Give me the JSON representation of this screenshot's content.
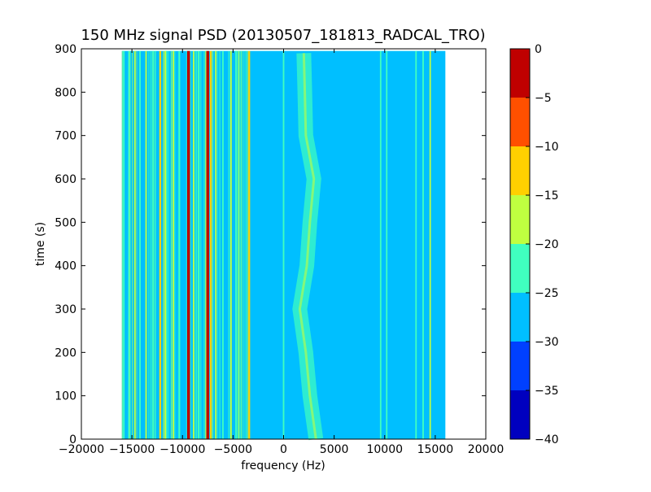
{
  "chart_data": {
    "type": "heatmap",
    "title": "150 MHz signal PSD (20130507_181813_RADCAL_TRO)",
    "xlabel": "frequency (Hz)",
    "ylabel": "time (s)",
    "xlim": [
      -20000,
      20000
    ],
    "ylim": [
      0,
      900
    ],
    "data_extent": {
      "x": [
        -16000,
        16000
      ],
      "y": [
        0,
        895
      ]
    },
    "xticks": [
      -20000,
      -15000,
      -10000,
      -5000,
      0,
      5000,
      10000,
      15000,
      20000
    ],
    "xtick_labels": [
      "−20000",
      "−15000",
      "−10000",
      "−5000",
      "0",
      "5000",
      "10000",
      "15000",
      "20000"
    ],
    "yticks": [
      0,
      100,
      200,
      300,
      400,
      500,
      600,
      700,
      800,
      900
    ],
    "ytick_labels": [
      "0",
      "100",
      "200",
      "300",
      "400",
      "500",
      "600",
      "700",
      "800",
      "900"
    ],
    "colorbar": {
      "ticks": [
        0,
        -5,
        -10,
        -15,
        -20,
        -25,
        -30,
        -35,
        -40
      ],
      "tick_labels": [
        "0",
        "−5",
        "−10",
        "−15",
        "−20",
        "−25",
        "−30",
        "−35",
        "−40"
      ],
      "levels": [
        {
          "range": [
            -40,
            -35
          ],
          "color": "#0000bf"
        },
        {
          "range": [
            -35,
            -30
          ],
          "color": "#0040ff"
        },
        {
          "range": [
            -30,
            -25
          ],
          "color": "#00bfff"
        },
        {
          "range": [
            -25,
            -20
          ],
          "color": "#40ffbf"
        },
        {
          "range": [
            -20,
            -15
          ],
          "color": "#bfff40"
        },
        {
          "range": [
            -15,
            -10
          ],
          "color": "#ffd000"
        },
        {
          "range": [
            -10,
            -5
          ],
          "color": "#ff5000"
        },
        {
          "range": [
            -5,
            0
          ],
          "color": "#bf0000"
        }
      ]
    },
    "background_level_db": -28,
    "vertical_lines": [
      {
        "freq": -15800,
        "level": -22
      },
      {
        "freq": -15300,
        "level": -22
      },
      {
        "freq": -14700,
        "level": -17
      },
      {
        "freq": -14200,
        "level": -22
      },
      {
        "freq": -13600,
        "level": -17
      },
      {
        "freq": -12900,
        "level": -22
      },
      {
        "freq": -12200,
        "level": -12
      },
      {
        "freq": -11700,
        "level": -17
      },
      {
        "freq": -10900,
        "level": -17
      },
      {
        "freq": -10300,
        "level": -22
      },
      {
        "freq": -9400,
        "level": -2
      },
      {
        "freq": -8900,
        "level": -17
      },
      {
        "freq": -8400,
        "level": -22
      },
      {
        "freq": -7500,
        "level": -2
      },
      {
        "freq": -7200,
        "level": -12
      },
      {
        "freq": -6700,
        "level": -17
      },
      {
        "freq": -6000,
        "level": -22
      },
      {
        "freq": -5200,
        "level": -17
      },
      {
        "freq": -4700,
        "level": -22
      },
      {
        "freq": -3400,
        "level": -12
      },
      {
        "freq": 0,
        "level": -22
      },
      {
        "freq": 9600,
        "level": -22
      },
      {
        "freq": 10200,
        "level": -22
      },
      {
        "freq": 13100,
        "level": -22
      },
      {
        "freq": 13800,
        "level": -22
      },
      {
        "freq": 14500,
        "level": -17
      }
    ],
    "wandering_signal": {
      "level": -22,
      "track": [
        {
          "t": 0,
          "f": 3200
        },
        {
          "t": 100,
          "f": 2600
        },
        {
          "t": 200,
          "f": 2200
        },
        {
          "t": 300,
          "f": 1600
        },
        {
          "t": 400,
          "f": 2300
        },
        {
          "t": 500,
          "f": 2600
        },
        {
          "t": 600,
          "f": 3000
        },
        {
          "t": 700,
          "f": 2200
        },
        {
          "t": 800,
          "f": 2100
        },
        {
          "t": 890,
          "f": 2000
        }
      ]
    }
  }
}
